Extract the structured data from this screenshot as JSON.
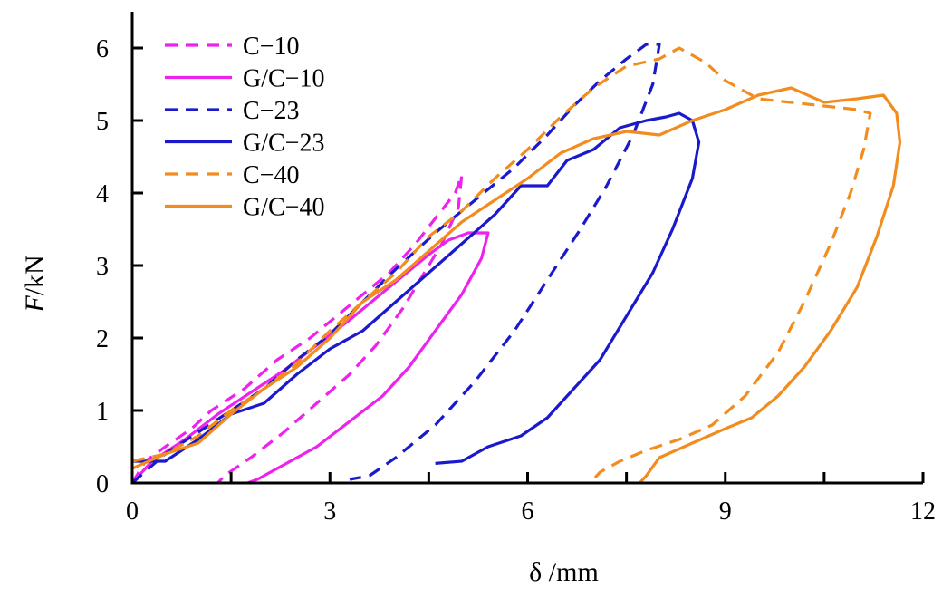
{
  "chart_data": {
    "type": "line",
    "xlabel": "δ /mm",
    "ylabel_italic": "F",
    "ylabel_unit": "/kN",
    "xlim": [
      0,
      12
    ],
    "ylim": [
      0,
      6.5
    ],
    "x_ticks": [
      0,
      3,
      6,
      9,
      12
    ],
    "y_ticks": [
      0,
      1,
      2,
      3,
      4,
      5,
      6
    ],
    "grid": false,
    "legend_position": "top-left",
    "series": [
      {
        "name": "C−10",
        "color": "#ee22ee",
        "dashed": true,
        "points": [
          [
            0,
            0
          ],
          [
            0.2,
            0.3
          ],
          [
            0.5,
            0.5
          ],
          [
            0.9,
            0.75
          ],
          [
            1.2,
            1.0
          ],
          [
            1.7,
            1.3
          ],
          [
            2.2,
            1.7
          ],
          [
            2.7,
            2.0
          ],
          [
            3.1,
            2.3
          ],
          [
            3.5,
            2.6
          ],
          [
            3.9,
            2.9
          ],
          [
            4.3,
            3.3
          ],
          [
            4.6,
            3.65
          ],
          [
            4.9,
            4.0
          ],
          [
            5.0,
            4.25
          ],
          [
            4.95,
            3.8
          ],
          [
            4.7,
            3.3
          ],
          [
            4.4,
            2.85
          ],
          [
            4.1,
            2.4
          ],
          [
            3.7,
            1.9
          ],
          [
            3.3,
            1.5
          ],
          [
            2.8,
            1.1
          ],
          [
            2.3,
            0.7
          ],
          [
            1.8,
            0.35
          ],
          [
            1.4,
            0.1
          ],
          [
            1.3,
            0.0
          ]
        ]
      },
      {
        "name": "G/C−10",
        "color": "#ee22ee",
        "dashed": false,
        "points": [
          [
            0,
            0
          ],
          [
            0.3,
            0.3
          ],
          [
            0.8,
            0.6
          ],
          [
            1.3,
            0.95
          ],
          [
            1.8,
            1.25
          ],
          [
            2.3,
            1.55
          ],
          [
            2.8,
            1.9
          ],
          [
            3.3,
            2.25
          ],
          [
            3.7,
            2.55
          ],
          [
            4.1,
            2.85
          ],
          [
            4.5,
            3.15
          ],
          [
            4.8,
            3.35
          ],
          [
            5.1,
            3.45
          ],
          [
            5.4,
            3.45
          ],
          [
            5.3,
            3.1
          ],
          [
            5.0,
            2.6
          ],
          [
            4.6,
            2.1
          ],
          [
            4.2,
            1.6
          ],
          [
            3.8,
            1.2
          ],
          [
            3.3,
            0.85
          ],
          [
            2.8,
            0.5
          ],
          [
            2.3,
            0.25
          ],
          [
            1.9,
            0.05
          ],
          [
            1.75,
            0.0
          ]
        ]
      },
      {
        "name": "C−23",
        "color": "#1a1acc",
        "dashed": true,
        "points": [
          [
            0,
            0
          ],
          [
            0.5,
            0.4
          ],
          [
            1.0,
            0.7
          ],
          [
            1.5,
            1.0
          ],
          [
            2.0,
            1.3
          ],
          [
            2.5,
            1.7
          ],
          [
            3.0,
            2.05
          ],
          [
            3.5,
            2.5
          ],
          [
            4.0,
            2.95
          ],
          [
            4.6,
            3.45
          ],
          [
            5.2,
            3.9
          ],
          [
            5.8,
            4.35
          ],
          [
            6.3,
            4.8
          ],
          [
            6.7,
            5.2
          ],
          [
            7.1,
            5.55
          ],
          [
            7.5,
            5.85
          ],
          [
            7.8,
            6.05
          ],
          [
            8.0,
            6.05
          ],
          [
            7.9,
            5.5
          ],
          [
            7.6,
            4.8
          ],
          [
            7.2,
            4.1
          ],
          [
            6.8,
            3.5
          ],
          [
            6.3,
            2.8
          ],
          [
            5.8,
            2.1
          ],
          [
            5.2,
            1.4
          ],
          [
            4.6,
            0.8
          ],
          [
            4.0,
            0.35
          ],
          [
            3.6,
            0.1
          ],
          [
            3.3,
            0.05
          ]
        ]
      },
      {
        "name": "G/C−23",
        "color": "#1a1acc",
        "dashed": false,
        "points": [
          [
            0,
            0.3
          ],
          [
            0.5,
            0.3
          ],
          [
            1.0,
            0.6
          ],
          [
            1.5,
            0.95
          ],
          [
            2.0,
            1.1
          ],
          [
            2.5,
            1.5
          ],
          [
            3.0,
            1.85
          ],
          [
            3.5,
            2.1
          ],
          [
            4.0,
            2.5
          ],
          [
            4.5,
            2.9
          ],
          [
            5.0,
            3.3
          ],
          [
            5.5,
            3.7
          ],
          [
            5.9,
            4.1
          ],
          [
            6.3,
            4.1
          ],
          [
            6.6,
            4.45
          ],
          [
            7.0,
            4.6
          ],
          [
            7.4,
            4.9
          ],
          [
            7.8,
            5.0
          ],
          [
            8.1,
            5.05
          ],
          [
            8.3,
            5.1
          ],
          [
            8.5,
            5.0
          ],
          [
            8.6,
            4.7
          ],
          [
            8.5,
            4.2
          ],
          [
            8.2,
            3.5
          ],
          [
            7.9,
            2.9
          ],
          [
            7.5,
            2.3
          ],
          [
            7.1,
            1.7
          ],
          [
            6.7,
            1.3
          ],
          [
            6.3,
            0.9
          ],
          [
            5.9,
            0.65
          ],
          [
            5.4,
            0.5
          ],
          [
            5.0,
            0.3
          ],
          [
            4.6,
            0.27
          ]
        ]
      },
      {
        "name": "C−40",
        "color": "#f28c1e",
        "dashed": true,
        "points": [
          [
            0,
            0.3
          ],
          [
            0.5,
            0.4
          ],
          [
            1.0,
            0.65
          ],
          [
            1.5,
            1.0
          ],
          [
            2.0,
            1.3
          ],
          [
            2.5,
            1.65
          ],
          [
            3.0,
            2.1
          ],
          [
            3.5,
            2.5
          ],
          [
            4.0,
            2.9
          ],
          [
            4.5,
            3.4
          ],
          [
            5.0,
            3.75
          ],
          [
            5.5,
            4.2
          ],
          [
            6.0,
            4.6
          ],
          [
            6.5,
            5.05
          ],
          [
            7.0,
            5.45
          ],
          [
            7.5,
            5.75
          ],
          [
            8.0,
            5.85
          ],
          [
            8.3,
            6.0
          ],
          [
            8.7,
            5.8
          ],
          [
            9.0,
            5.55
          ],
          [
            9.5,
            5.3
          ],
          [
            10.0,
            5.25
          ],
          [
            10.5,
            5.2
          ],
          [
            11.0,
            5.15
          ],
          [
            11.2,
            5.1
          ],
          [
            11.1,
            4.6
          ],
          [
            10.9,
            4.0
          ],
          [
            10.6,
            3.3
          ],
          [
            10.2,
            2.5
          ],
          [
            9.8,
            1.8
          ],
          [
            9.3,
            1.2
          ],
          [
            8.8,
            0.8
          ],
          [
            8.3,
            0.6
          ],
          [
            7.8,
            0.45
          ],
          [
            7.4,
            0.3
          ],
          [
            7.1,
            0.15
          ],
          [
            6.95,
            0.0
          ]
        ]
      },
      {
        "name": "G/C−40",
        "color": "#f28c1e",
        "dashed": false,
        "points": [
          [
            0,
            0.2
          ],
          [
            0.5,
            0.4
          ],
          [
            1.0,
            0.55
          ],
          [
            1.5,
            0.95
          ],
          [
            2.0,
            1.3
          ],
          [
            2.5,
            1.6
          ],
          [
            3.0,
            2.0
          ],
          [
            3.5,
            2.5
          ],
          [
            4.0,
            2.8
          ],
          [
            4.5,
            3.2
          ],
          [
            5.0,
            3.6
          ],
          [
            5.5,
            3.9
          ],
          [
            6.0,
            4.2
          ],
          [
            6.5,
            4.55
          ],
          [
            7.0,
            4.75
          ],
          [
            7.5,
            4.85
          ],
          [
            8.0,
            4.8
          ],
          [
            8.5,
            5.0
          ],
          [
            9.0,
            5.15
          ],
          [
            9.5,
            5.35
          ],
          [
            10.0,
            5.45
          ],
          [
            10.5,
            5.25
          ],
          [
            11.0,
            5.3
          ],
          [
            11.4,
            5.35
          ],
          [
            11.6,
            5.1
          ],
          [
            11.65,
            4.7
          ],
          [
            11.55,
            4.1
          ],
          [
            11.3,
            3.4
          ],
          [
            11.0,
            2.7
          ],
          [
            10.6,
            2.1
          ],
          [
            10.2,
            1.6
          ],
          [
            9.8,
            1.2
          ],
          [
            9.4,
            0.9
          ],
          [
            9.0,
            0.75
          ],
          [
            8.5,
            0.55
          ],
          [
            8.0,
            0.35
          ],
          [
            7.8,
            0.1
          ],
          [
            7.7,
            0.0
          ]
        ]
      }
    ]
  }
}
